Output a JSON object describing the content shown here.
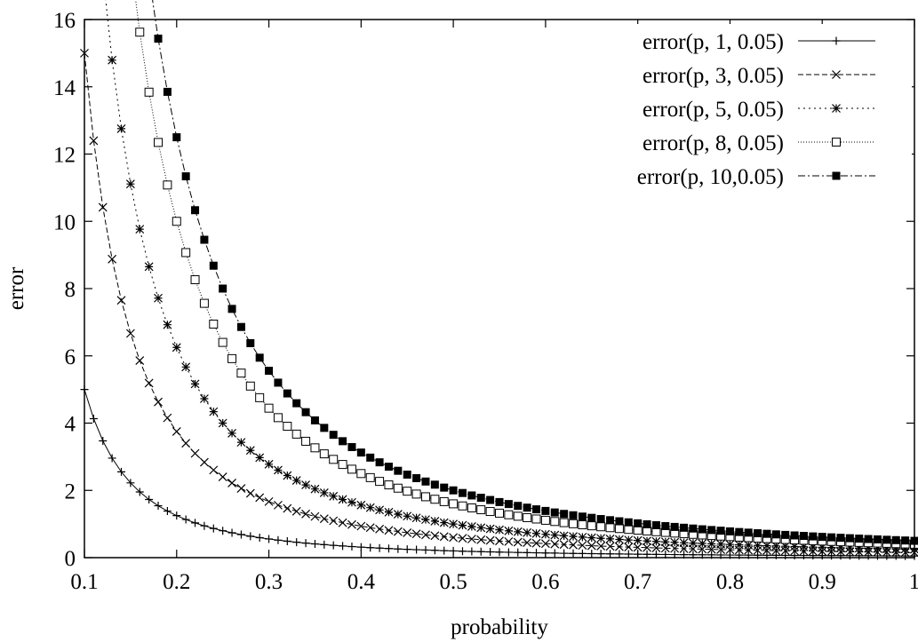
{
  "chart_data": {
    "type": "line",
    "title": "",
    "xlabel": "probability",
    "ylabel": "error",
    "xlim": [
      0.1,
      1
    ],
    "ylim": [
      0,
      16
    ],
    "xticks": [
      "0.1",
      "0.2",
      "0.3",
      "0.4",
      "0.5",
      "0.6",
      "0.7",
      "0.8",
      "0.9",
      "1"
    ],
    "yticks": [
      "0",
      "2",
      "4",
      "6",
      "8",
      "10",
      "12",
      "14",
      "16"
    ],
    "grid": false,
    "legend_position": "top-right",
    "x_start": 0.1,
    "x_end": 1.0,
    "x_step": 0.01,
    "series": [
      {
        "name": "error(p, 1, 0.05)",
        "k": 1,
        "delta": 0.05,
        "marker": "plus",
        "dash": "solid"
      },
      {
        "name": "error(p, 3, 0.05)",
        "k": 3,
        "delta": 0.05,
        "marker": "cross",
        "dash": "dashed"
      },
      {
        "name": "error(p, 5, 0.05)",
        "k": 5,
        "delta": 0.05,
        "marker": "star",
        "dash": "dotted"
      },
      {
        "name": "error(p, 8, 0.05)",
        "k": 8,
        "delta": 0.05,
        "marker": "open-square",
        "dash": "fine-dotted"
      },
      {
        "name": "error(p, 10,0.05)",
        "k": 10,
        "delta": 0.05,
        "marker": "filled-square",
        "dash": "dash-dot"
      }
    ]
  }
}
